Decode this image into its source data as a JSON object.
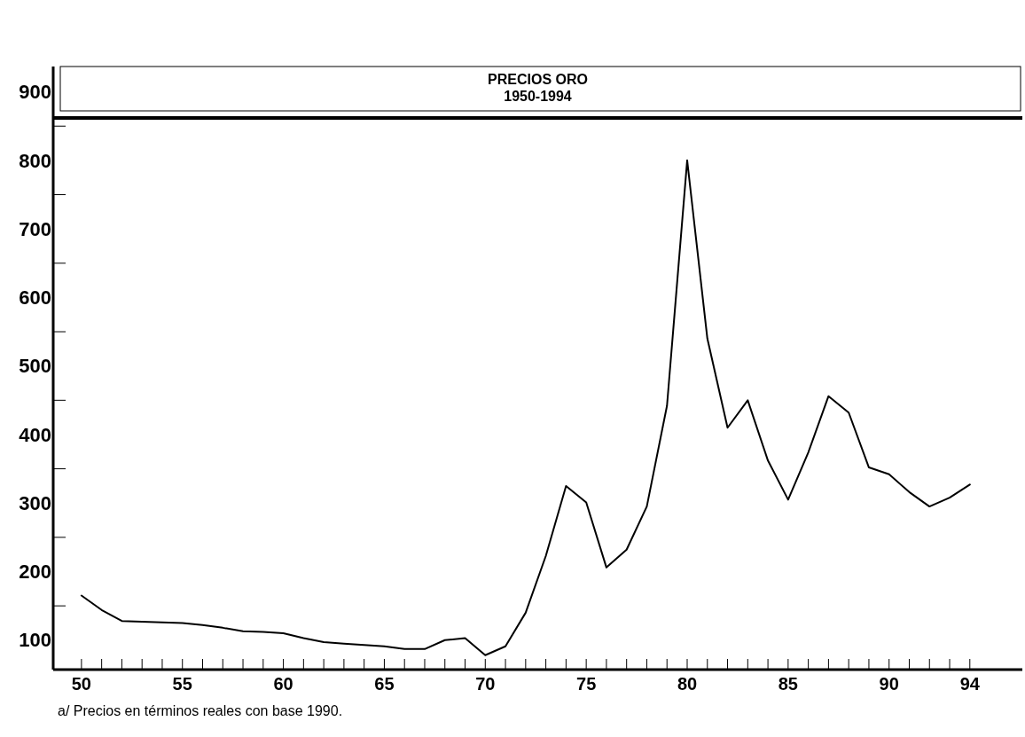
{
  "chart_data": {
    "type": "line",
    "title": "PRECIOS ORO",
    "subtitle": "1950-1994",
    "annotations": [
      "a/ Precios en términos reales con base 1990."
    ],
    "x": [
      1950,
      1951,
      1952,
      1953,
      1954,
      1955,
      1956,
      1957,
      1958,
      1959,
      1960,
      1961,
      1962,
      1963,
      1964,
      1965,
      1966,
      1967,
      1968,
      1969,
      1970,
      1971,
      1972,
      1973,
      1974,
      1975,
      1976,
      1977,
      1978,
      1979,
      1980,
      1981,
      1982,
      1983,
      1984,
      1985,
      1986,
      1987,
      1988,
      1989,
      1990,
      1991,
      1992,
      1993,
      1994
    ],
    "series": [
      {
        "color": "#000000",
        "values": [
          165,
          144,
          128,
          127,
          126,
          125,
          122,
          118,
          113,
          112,
          110,
          103,
          97,
          95,
          93,
          91,
          87,
          87,
          100,
          103,
          78,
          91,
          140,
          223,
          325,
          301,
          206,
          232,
          295,
          442,
          800,
          540,
          410,
          450,
          362,
          305,
          374,
          456,
          432,
          352,
          342,
          316,
          295,
          308,
          327
        ]
      }
    ],
    "xlim": [
      1948.6,
      1996.6
    ],
    "xticks": [
      {
        "value": 1950,
        "label": "50"
      },
      {
        "value": 1951,
        "label": null
      },
      {
        "value": 1952,
        "label": null
      },
      {
        "value": 1953,
        "label": null
      },
      {
        "value": 1954,
        "label": null
      },
      {
        "value": 1955,
        "label": "55"
      },
      {
        "value": 1956,
        "label": null
      },
      {
        "value": 1957,
        "label": null
      },
      {
        "value": 1958,
        "label": null
      },
      {
        "value": 1959,
        "label": null
      },
      {
        "value": 1960,
        "label": "60"
      },
      {
        "value": 1961,
        "label": null
      },
      {
        "value": 1962,
        "label": null
      },
      {
        "value": 1963,
        "label": null
      },
      {
        "value": 1964,
        "label": null
      },
      {
        "value": 1965,
        "label": "65"
      },
      {
        "value": 1966,
        "label": null
      },
      {
        "value": 1967,
        "label": null
      },
      {
        "value": 1968,
        "label": null
      },
      {
        "value": 1969,
        "label": null
      },
      {
        "value": 1970,
        "label": "70"
      },
      {
        "value": 1971,
        "label": null
      },
      {
        "value": 1972,
        "label": null
      },
      {
        "value": 1973,
        "label": null
      },
      {
        "value": 1974,
        "label": null
      },
      {
        "value": 1975,
        "label": "75"
      },
      {
        "value": 1976,
        "label": null
      },
      {
        "value": 1977,
        "label": null
      },
      {
        "value": 1978,
        "label": null
      },
      {
        "value": 1979,
        "label": null
      },
      {
        "value": 1980,
        "label": "80"
      },
      {
        "value": 1981,
        "label": null
      },
      {
        "value": 1982,
        "label": null
      },
      {
        "value": 1983,
        "label": null
      },
      {
        "value": 1984,
        "label": null
      },
      {
        "value": 1985,
        "label": "85"
      },
      {
        "value": 1986,
        "label": null
      },
      {
        "value": 1987,
        "label": null
      },
      {
        "value": 1988,
        "label": null
      },
      {
        "value": 1989,
        "label": null
      },
      {
        "value": 1990,
        "label": "90"
      },
      {
        "value": 1991,
        "label": null
      },
      {
        "value": 1992,
        "label": null
      },
      {
        "value": 1993,
        "label": null
      },
      {
        "value": 1994,
        "label": "94"
      }
    ],
    "ylim": [
      57,
      937
    ],
    "yticks": [
      100,
      {
        "value": 150,
        "label": null
      },
      200,
      {
        "value": 250,
        "label": null
      },
      300,
      {
        "value": 350,
        "label": null
      },
      400,
      {
        "value": 450,
        "label": null
      },
      500,
      {
        "value": 550,
        "label": null
      },
      600,
      {
        "value": 650,
        "label": null
      },
      700,
      {
        "value": 750,
        "label": null
      },
      800,
      {
        "value": 850,
        "label": null
      },
      900
    ],
    "grid": false,
    "marker": "none",
    "line_style": "solid"
  }
}
